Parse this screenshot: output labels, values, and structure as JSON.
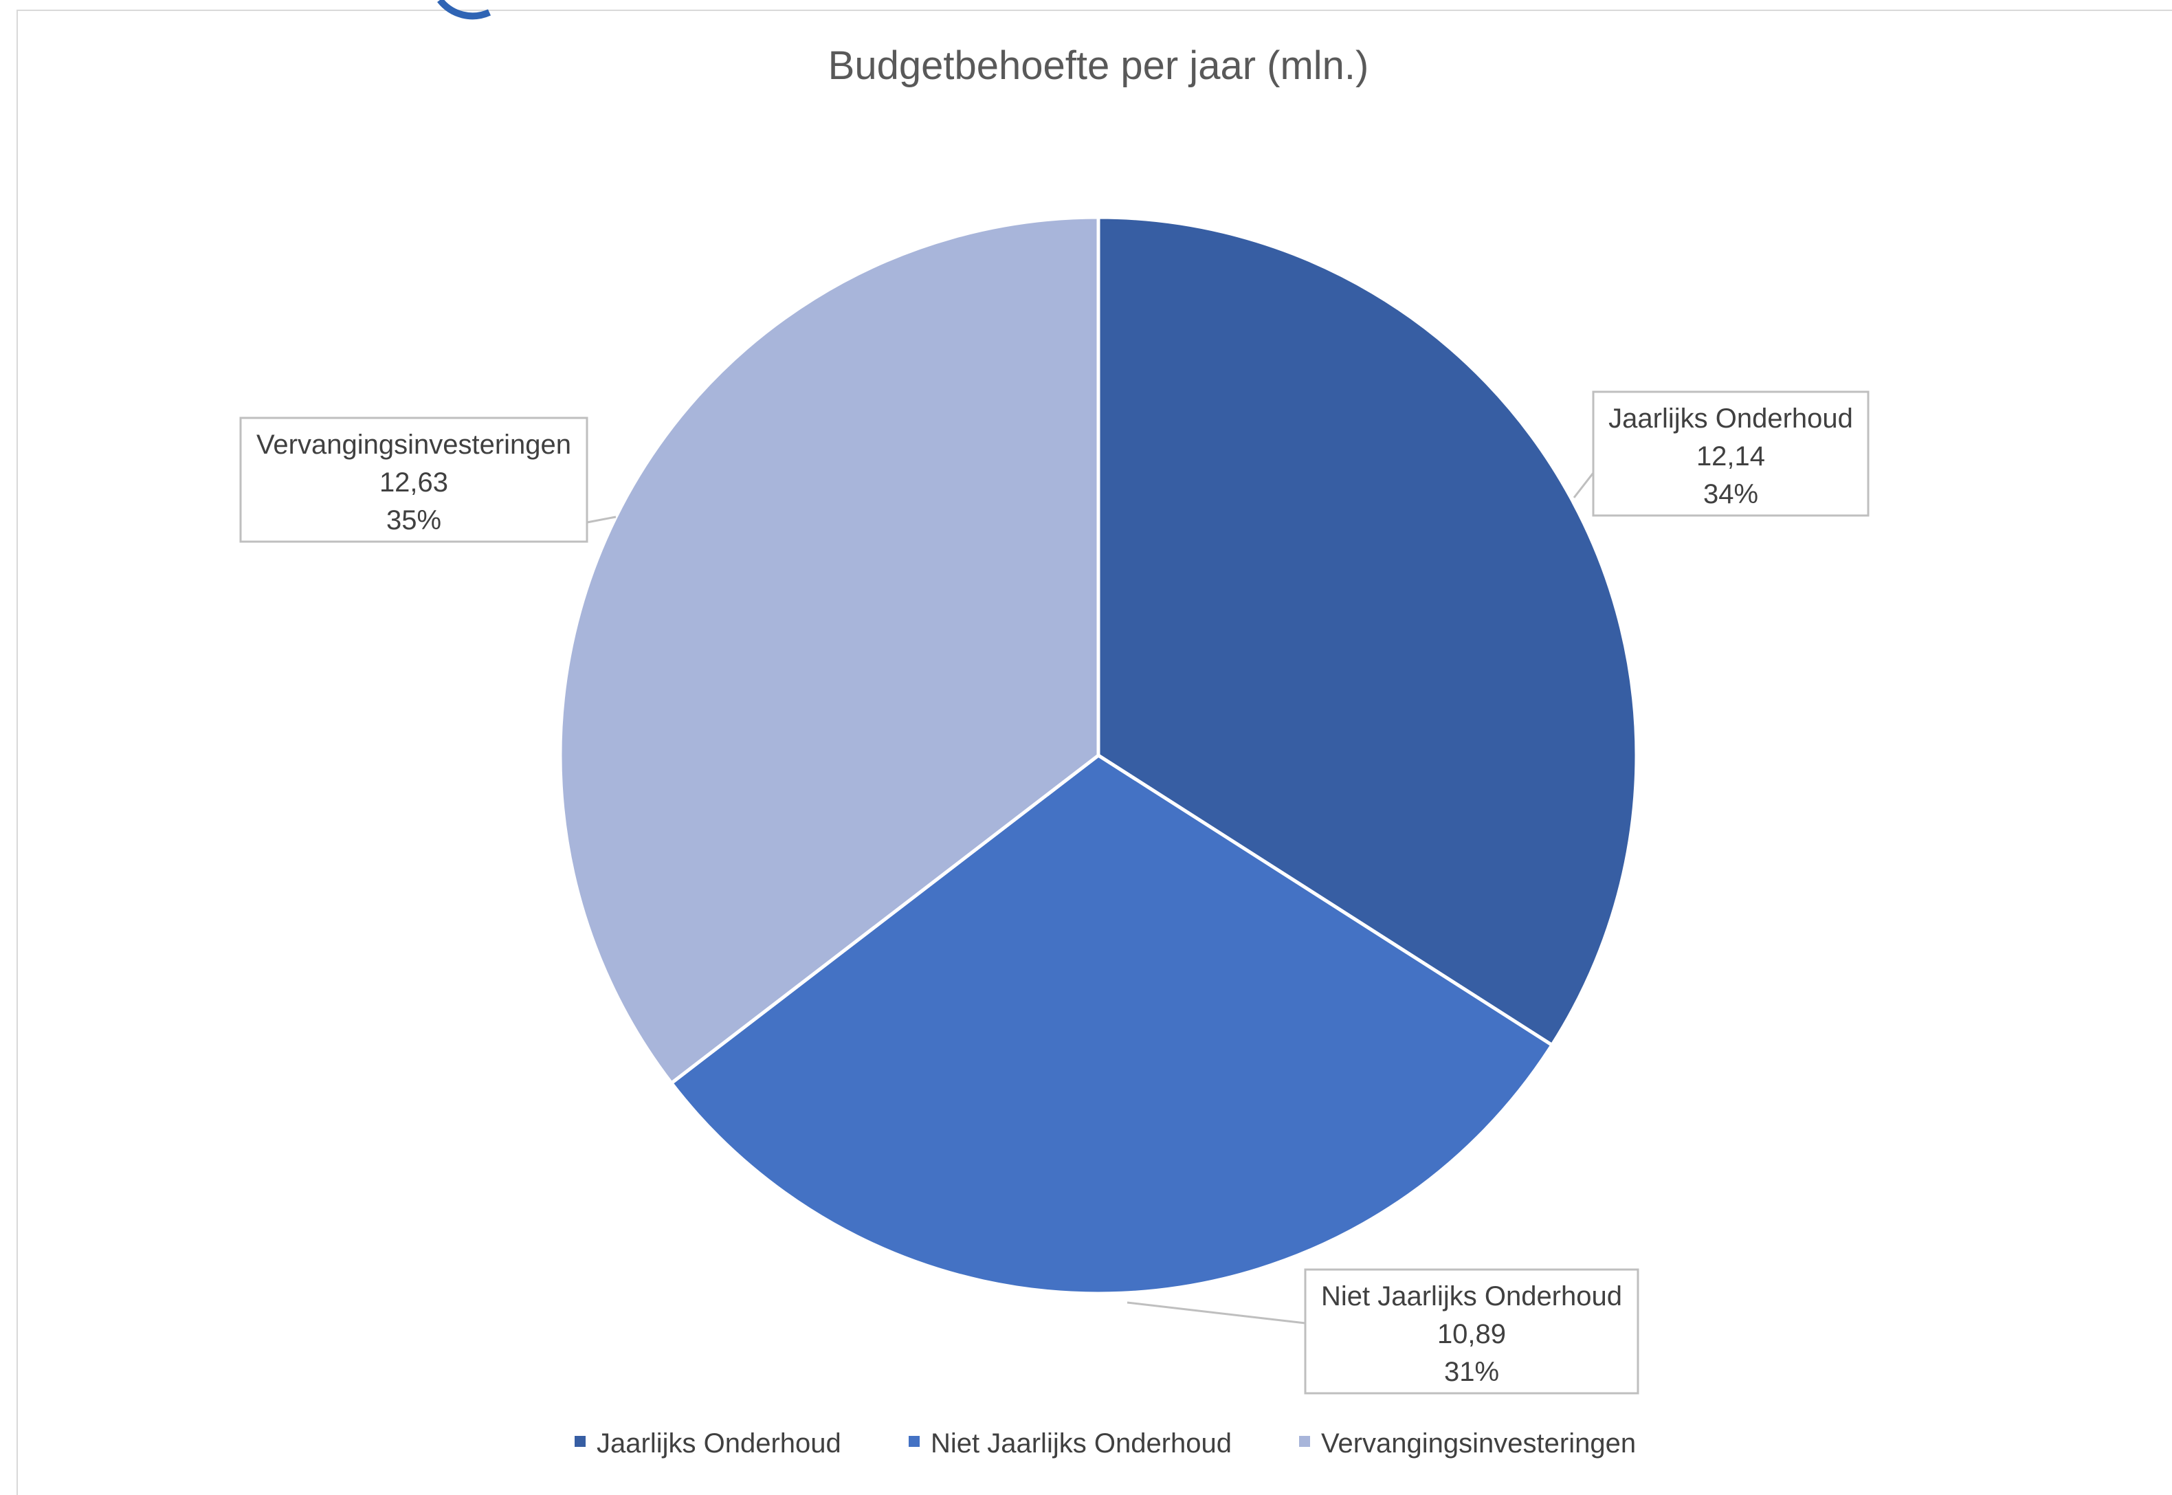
{
  "chart_data": {
    "type": "pie",
    "title": "Budgetbehoefte per jaar (mln.)",
    "categories": [
      "Jaarlijks Onderhoud",
      "Niet Jaarlijks Onderhoud",
      "Vervangingsinvesteringen"
    ],
    "values": [
      12.14,
      10.89,
      12.63
    ],
    "value_labels": [
      "12,14",
      "10,89",
      "12,63"
    ],
    "percent_labels": [
      "34%",
      "31%",
      "35%"
    ],
    "colors": [
      "#375ea3",
      "#4472c4",
      "#a8b5da"
    ],
    "start_angle_deg": 0,
    "direction": "clockwise",
    "legend": {
      "position": "bottom"
    },
    "data_labels": "callout"
  },
  "top_logo_color": "#2f64b4"
}
